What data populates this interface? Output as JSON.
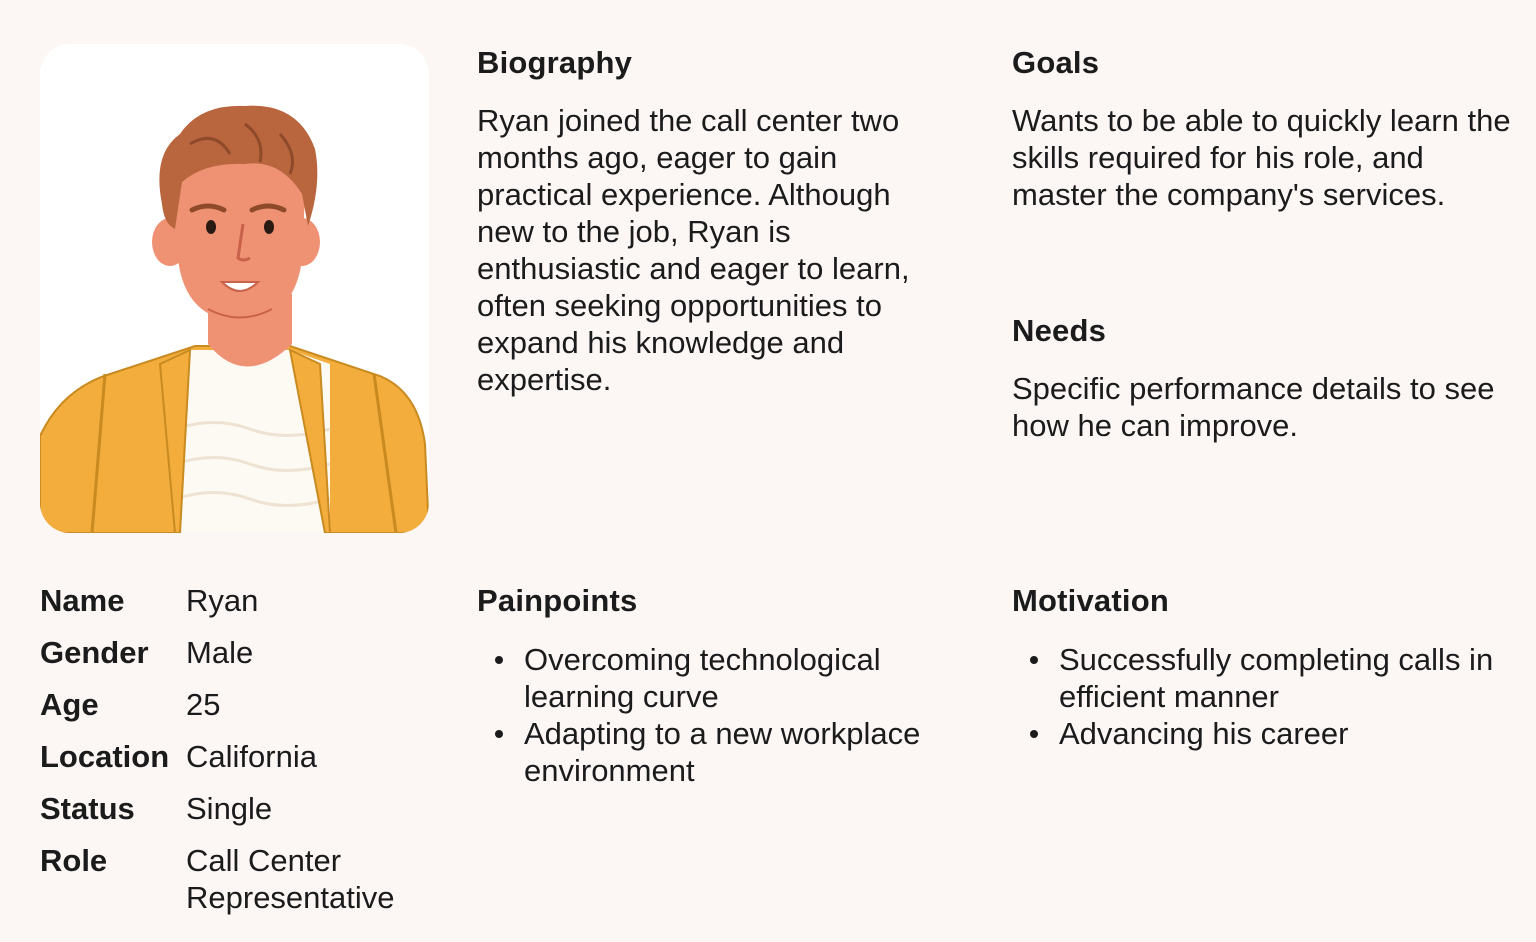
{
  "persona": {
    "biography": {
      "title": "Biography",
      "text": "Ryan joined the call center two months ago, eager to gain practical experience. Although new to the job, Ryan is enthusiastic and eager to learn, often seeking opportunities to expand his knowledge and expertise."
    },
    "goals": {
      "title": "Goals",
      "text": "Wants to be able to quickly learn the skills required for his role, and master the company's services."
    },
    "needs": {
      "title": "Needs",
      "text": "Specific performance details to see how he can improve."
    },
    "painpoints": {
      "title": "Painpoints",
      "items": [
        "Overcoming technological learning curve",
        "Adapting to a new workplace environment"
      ]
    },
    "motivation": {
      "title": "Motivation",
      "items": [
        "Successfully completing calls in efficient manner",
        "Advancing his career"
      ]
    },
    "info": [
      {
        "label": "Name",
        "value": "Ryan"
      },
      {
        "label": "Gender",
        "value": "Male"
      },
      {
        "label": "Age",
        "value": "25"
      },
      {
        "label": "Location",
        "value": "California"
      },
      {
        "label": "Status",
        "value": "Single"
      },
      {
        "label": "Role",
        "value": "Call Center Representative"
      }
    ]
  },
  "avatar_icon": "young-man-avatar-illustration",
  "colors": {
    "background": "#fcf6f5",
    "card": "#ffffff",
    "hair": "#b9663f",
    "skin": "#ef9274",
    "jacket": "#f2ad3c",
    "shirt": "#fdfaf3"
  }
}
